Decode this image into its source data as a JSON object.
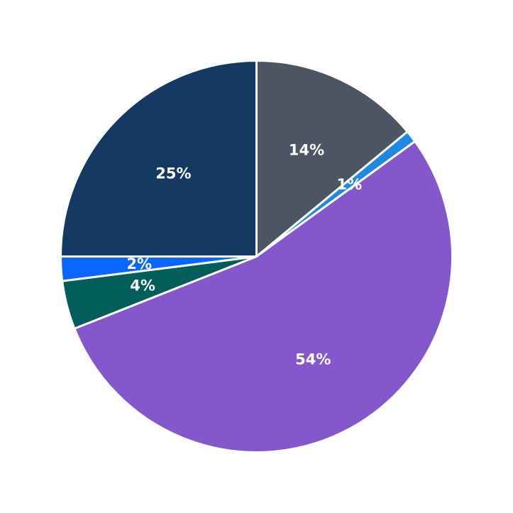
{
  "chart_data": {
    "type": "pie",
    "start_angle_deg": 90,
    "direction": "clockwise",
    "slices": [
      {
        "value": 14,
        "label": "14%",
        "color": "#4b5563"
      },
      {
        "value": 1,
        "label": "1%",
        "color": "#1e88e5"
      },
      {
        "value": 54,
        "label": "54%",
        "color": "#8458cc"
      },
      {
        "value": 4,
        "label": "4%",
        "color": "#025e5a"
      },
      {
        "value": 2,
        "label": "2%",
        "color": "#0a66ff"
      },
      {
        "value": 25,
        "label": "25%",
        "color": "#143a63"
      }
    ]
  }
}
